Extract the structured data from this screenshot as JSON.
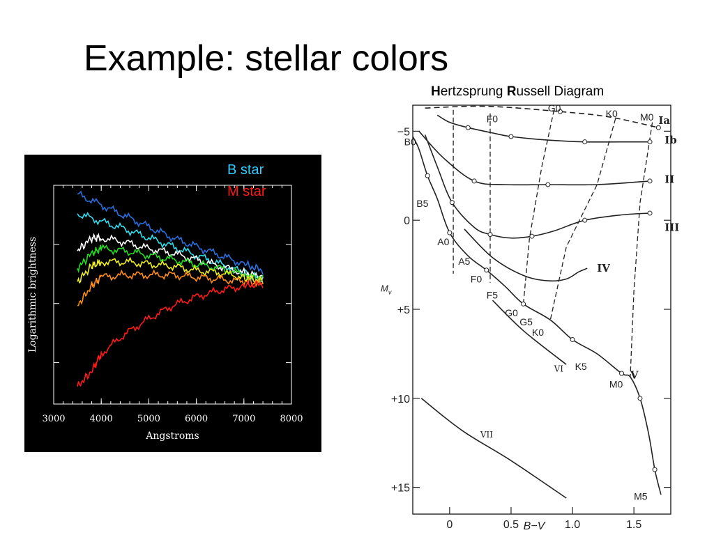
{
  "slide": {
    "title": "Example: stellar colors"
  },
  "hr_title": {
    "h": "H",
    "rest1": "ertzsprung ",
    "r": "R",
    "rest2": "ussell Diagram"
  },
  "chart_data": [
    {
      "type": "line",
      "xlabel": "Angstroms",
      "ylabel": "Logarithmic brightness",
      "xlim": [
        3000,
        8000
      ],
      "xticks": [
        "3000",
        "4000",
        "5000",
        "6000",
        "7000",
        "8000"
      ],
      "legend": [
        {
          "name": "B star",
          "color": "#33ccff"
        },
        {
          "name": "M star",
          "color": "#ff1a1a"
        }
      ],
      "series": [
        {
          "color": "#2a6fe0",
          "points": [
            [
              3500,
              9.6
            ],
            [
              4000,
              9.1
            ],
            [
              4500,
              8.6
            ],
            [
              5000,
              8.1
            ],
            [
              5500,
              7.6
            ],
            [
              6000,
              7.2
            ],
            [
              6500,
              6.8
            ],
            [
              7000,
              6.4
            ],
            [
              7400,
              6.1
            ]
          ]
        },
        {
          "color": "#33ddee",
          "points": [
            [
              3500,
              8.7
            ],
            [
              4000,
              8.35
            ],
            [
              4500,
              8.0
            ],
            [
              5000,
              7.6
            ],
            [
              5500,
              7.2
            ],
            [
              6000,
              6.8
            ],
            [
              6500,
              6.4
            ],
            [
              7000,
              6.0
            ],
            [
              7400,
              5.7
            ]
          ]
        },
        {
          "color": "#ffffff",
          "points": [
            [
              3500,
              7.0
            ],
            [
              3800,
              7.6
            ],
            [
              4000,
              7.6
            ],
            [
              4500,
              7.4
            ],
            [
              5000,
              7.1
            ],
            [
              5500,
              6.9
            ],
            [
              6000,
              6.6
            ],
            [
              6500,
              6.3
            ],
            [
              7000,
              6.0
            ],
            [
              7400,
              5.8
            ]
          ]
        },
        {
          "color": "#22dd22",
          "points": [
            [
              3500,
              6.2
            ],
            [
              3800,
              6.9
            ],
            [
              4000,
              7.1
            ],
            [
              4500,
              7.0
            ],
            [
              5000,
              6.8
            ],
            [
              5500,
              6.6
            ],
            [
              6000,
              6.4
            ],
            [
              6500,
              6.2
            ],
            [
              7000,
              5.9
            ],
            [
              7400,
              5.7
            ]
          ]
        },
        {
          "color": "#f0f020",
          "points": [
            [
              3500,
              5.6
            ],
            [
              3800,
              6.3
            ],
            [
              4000,
              6.5
            ],
            [
              4500,
              6.5
            ],
            [
              5000,
              6.4
            ],
            [
              5500,
              6.3
            ],
            [
              6000,
              6.1
            ],
            [
              6500,
              6.0
            ],
            [
              7000,
              5.8
            ],
            [
              7400,
              5.6
            ]
          ]
        },
        {
          "color": "#ff8c1a",
          "points": [
            [
              3500,
              4.5
            ],
            [
              3800,
              5.4
            ],
            [
              4000,
              5.8
            ],
            [
              4500,
              5.9
            ],
            [
              5000,
              5.9
            ],
            [
              5500,
              5.9
            ],
            [
              6000,
              5.8
            ],
            [
              6500,
              5.7
            ],
            [
              7000,
              5.6
            ],
            [
              7400,
              5.5
            ]
          ]
        },
        {
          "color": "#ff1a1a",
          "points": [
            [
              3500,
              0.8
            ],
            [
              3800,
              1.5
            ],
            [
              4000,
              2.3
            ],
            [
              4500,
              3.2
            ],
            [
              5000,
              3.9
            ],
            [
              5500,
              4.5
            ],
            [
              6000,
              4.9
            ],
            [
              6500,
              5.2
            ],
            [
              7000,
              5.4
            ],
            [
              7400,
              5.5
            ]
          ]
        }
      ]
    },
    {
      "type": "line",
      "xlabel": "B−V",
      "ylabel": "M",
      "ylabel_sub": "v",
      "xlim": [
        -0.3,
        1.8
      ],
      "ylim": [
        -6.5,
        16.5
      ],
      "xticks": [
        {
          "v": 0,
          "t": "0"
        },
        {
          "v": 0.5,
          "t": "0.5"
        },
        {
          "v": 1.0,
          "t": "1.0"
        },
        {
          "v": 1.5,
          "t": "1.5"
        }
      ],
      "yticks": [
        {
          "v": -5,
          "t": "−5"
        },
        {
          "v": 0,
          "t": "0"
        },
        {
          "v": 5,
          "t": "+5"
        },
        {
          "v": 10,
          "t": "+10"
        },
        {
          "v": 15,
          "t": "+15"
        }
      ],
      "luminosity_classes": [
        {
          "name": "Ia",
          "label_at": [
            1.7,
            -5.6
          ],
          "solid": false,
          "points": [
            [
              -0.2,
              -6.3
            ],
            [
              0.3,
              -6.4
            ],
            [
              0.9,
              -6.1
            ],
            [
              1.3,
              -5.8
            ],
            [
              1.7,
              -5.2
            ]
          ]
        },
        {
          "name": "Ib",
          "label_at": [
            1.75,
            -4.5
          ],
          "solid": true,
          "points": [
            [
              -0.1,
              -5.9
            ],
            [
              0.0,
              -5.5
            ],
            [
              0.15,
              -5.2
            ],
            [
              0.35,
              -4.9
            ],
            [
              0.5,
              -4.7
            ],
            [
              0.8,
              -4.5
            ],
            [
              1.1,
              -4.4
            ],
            [
              1.4,
              -4.4
            ],
            [
              1.63,
              -4.4
            ]
          ]
        },
        {
          "name": "II",
          "label_at": [
            1.75,
            -2.3
          ],
          "solid": true,
          "points": [
            [
              -0.25,
              -5.0
            ],
            [
              -0.05,
              -3.5
            ],
            [
              0.2,
              -2.2
            ],
            [
              0.45,
              -2.0
            ],
            [
              0.8,
              -2.0
            ],
            [
              1.2,
              -2.0
            ],
            [
              1.63,
              -2.2
            ]
          ]
        },
        {
          "name": "III",
          "label_at": [
            1.75,
            0.4
          ],
          "solid": true,
          "points": [
            [
              -0.2,
              -4.8
            ],
            [
              -0.1,
              -3.0
            ],
            [
              0.02,
              -1.0
            ],
            [
              0.2,
              0.4
            ],
            [
              0.33,
              0.8
            ],
            [
              0.5,
              1.0
            ],
            [
              0.67,
              0.9
            ],
            [
              0.85,
              0.6
            ],
            [
              1.1,
              0.0
            ],
            [
              1.4,
              -0.3
            ],
            [
              1.63,
              -0.4
            ]
          ]
        },
        {
          "name": "IV",
          "label_at": [
            1.2,
            2.7
          ],
          "solid": true,
          "points": [
            [
              0.12,
              0.5
            ],
            [
              0.35,
              2.1
            ],
            [
              0.6,
              3.1
            ],
            [
              0.8,
              3.4
            ],
            [
              0.95,
              3.3
            ],
            [
              1.05,
              2.9
            ],
            [
              1.12,
              2.7
            ]
          ]
        },
        {
          "name": "V",
          "label_at": [
            1.47,
            8.7
          ],
          "solid": true,
          "points": [
            [
              -0.3,
              -4.7
            ],
            [
              -0.25,
              -4.0
            ],
            [
              -0.18,
              -2.5
            ],
            [
              -0.1,
              -1.2
            ],
            [
              0.0,
              0.7
            ],
            [
              0.15,
              2.0
            ],
            [
              0.3,
              2.8
            ],
            [
              0.45,
              3.7
            ],
            [
              0.6,
              4.7
            ],
            [
              0.82,
              5.6
            ],
            [
              1.0,
              6.7
            ],
            [
              1.2,
              7.5
            ],
            [
              1.4,
              8.6
            ],
            [
              1.47,
              8.8
            ],
            [
              1.55,
              10.0
            ],
            [
              1.62,
              12.0
            ],
            [
              1.67,
              14.0
            ],
            [
              1.72,
              15.4
            ]
          ]
        },
        {
          "name": "VI",
          "label_at": [
            0.85,
            8.3
          ],
          "solid": true,
          "points": [
            [
              0.35,
              4.5
            ],
            [
              0.6,
              6.2
            ],
            [
              0.95,
              8.1
            ]
          ]
        },
        {
          "name": "VII",
          "label_at": [
            0.25,
            12.0
          ],
          "solid": true,
          "points": [
            [
              -0.23,
              10.0
            ],
            [
              0.1,
              11.8
            ],
            [
              0.5,
              13.5
            ],
            [
              0.95,
              15.6
            ]
          ]
        }
      ],
      "spectral_types": [
        {
          "t": "B0",
          "at": [
            -0.37,
            -4.4
          ]
        },
        {
          "t": "B5",
          "at": [
            -0.27,
            -0.95
          ]
        },
        {
          "t": "A0",
          "at": [
            -0.1,
            1.2
          ]
        },
        {
          "t": "A5",
          "at": [
            0.07,
            2.3
          ]
        },
        {
          "t": "F0",
          "at": [
            0.17,
            3.3
          ]
        },
        {
          "t": "F5",
          "at": [
            0.3,
            4.2
          ]
        },
        {
          "t": "G0",
          "at": [
            0.45,
            5.2
          ]
        },
        {
          "t": "G5",
          "at": [
            0.57,
            5.7
          ]
        },
        {
          "t": "K0",
          "at": [
            0.67,
            6.3
          ]
        },
        {
          "t": "K5",
          "at": [
            1.02,
            8.2
          ]
        },
        {
          "t": "M0",
          "at": [
            1.3,
            9.2
          ]
        },
        {
          "t": "M5",
          "at": [
            1.5,
            15.5
          ]
        },
        {
          "t": "F0",
          "at": [
            0.3,
            -5.7
          ]
        },
        {
          "t": "G0",
          "at": [
            0.8,
            -6.3
          ]
        },
        {
          "t": "K0",
          "at": [
            1.27,
            -6.0
          ]
        },
        {
          "t": "M0",
          "at": [
            1.55,
            -5.8
          ]
        }
      ],
      "spectral_lines": [
        {
          "points": [
            [
              0.03,
              -6.2
            ],
            [
              0.03,
              3.0
            ]
          ]
        },
        {
          "points": [
            [
              0.33,
              -6.0
            ],
            [
              0.33,
              3.5
            ]
          ]
        },
        {
          "points": [
            [
              0.85,
              -6.2
            ],
            [
              0.75,
              -3.0
            ],
            [
              0.65,
              1.0
            ],
            [
              0.6,
              4.7
            ]
          ]
        },
        {
          "points": [
            [
              1.35,
              -5.7
            ],
            [
              1.2,
              -2.0
            ],
            [
              0.95,
              1.5
            ],
            [
              0.82,
              5.6
            ]
          ]
        },
        {
          "points": [
            [
              1.65,
              -5.5
            ],
            [
              1.55,
              -1.0
            ],
            [
              1.5,
              4.0
            ],
            [
              1.47,
              8.8
            ]
          ]
        }
      ]
    }
  ]
}
